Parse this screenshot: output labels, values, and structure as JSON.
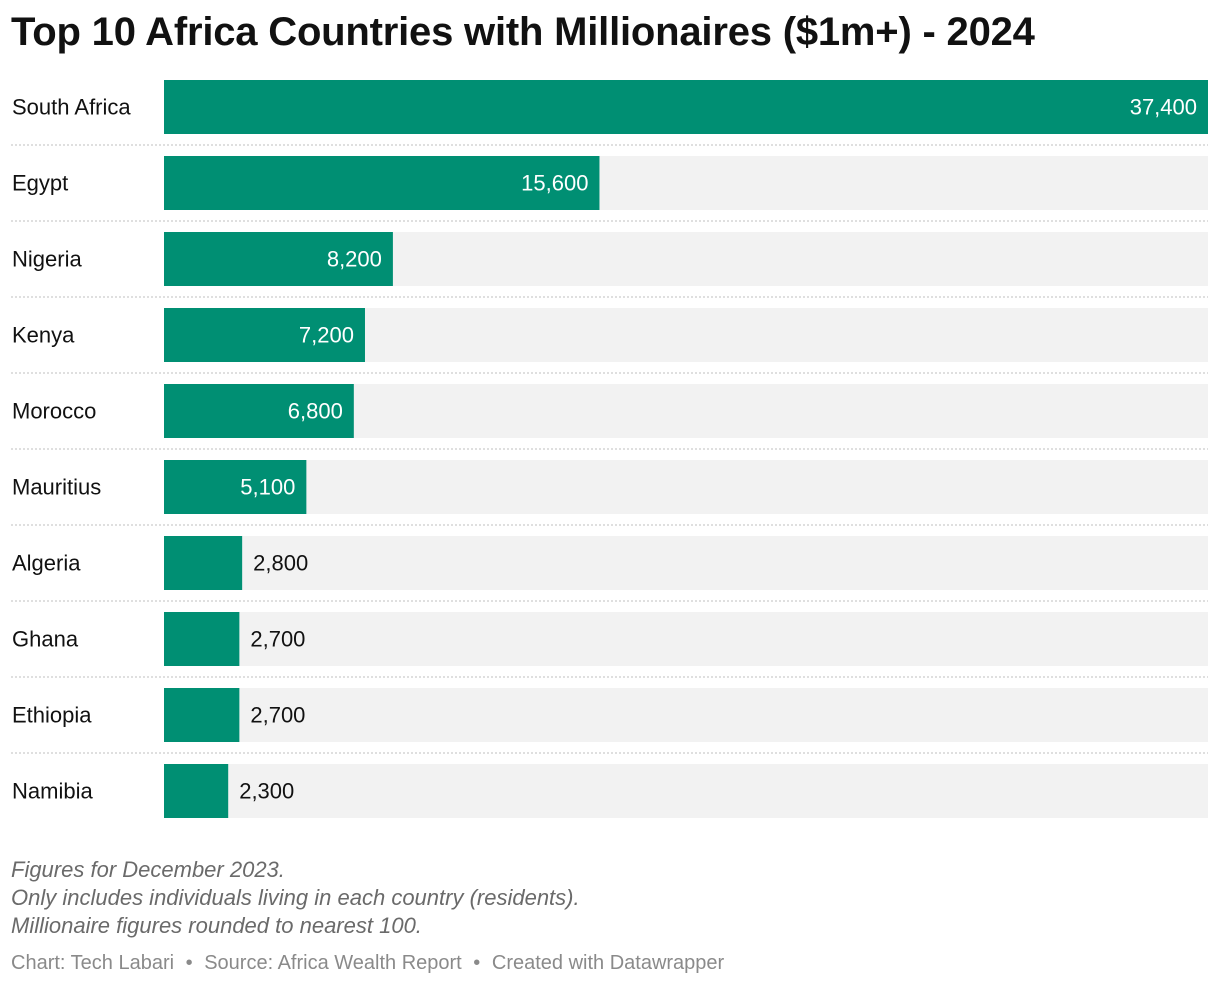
{
  "chart_data": {
    "type": "bar",
    "orientation": "horizontal",
    "title": "Top 10 Africa Countries with Millionaires ($1m+) - 2024",
    "categories": [
      "South Africa",
      "Egypt",
      "Nigeria",
      "Kenya",
      "Morocco",
      "Mauritius",
      "Algeria",
      "Ghana",
      "Ethiopia",
      "Namibia"
    ],
    "values": [
      37400,
      15600,
      8200,
      7200,
      6800,
      5100,
      2800,
      2700,
      2700,
      2300
    ],
    "value_labels": [
      "37,400",
      "15,600",
      "8,200",
      "7,200",
      "6,800",
      "5,100",
      "2,800",
      "2,700",
      "2,700",
      "2,300"
    ],
    "xlim": [
      0,
      37400
    ],
    "xlabel": "",
    "ylabel": "",
    "grid": false
  },
  "notes": [
    "Figures for December 2023.",
    "Only includes individuals living in each country (residents).",
    "Millionaire figures rounded to nearest 100."
  ],
  "credits": {
    "chart": "Chart: Tech Labari",
    "source": "Source: Africa Wealth Report",
    "created": "Created with Datawrapper",
    "separator": "•"
  },
  "colors": {
    "bar": "#008f73",
    "track": "#f2f2f2",
    "divider": "#cccccc",
    "label_inside": "#ffffff",
    "label_outside": "#111111"
  }
}
